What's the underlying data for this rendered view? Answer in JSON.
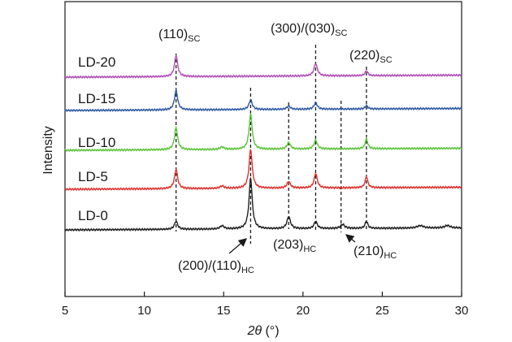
{
  "chart_data": {
    "type": "line",
    "xlabel_italic": "2θ",
    "xlabel_unit": " (°)",
    "ylabel": "Intensity",
    "xlim": [
      5,
      30
    ],
    "xticks": [
      5,
      10,
      15,
      20,
      25,
      30
    ],
    "yticks_shown": false,
    "series": [
      {
        "name": "LD-0",
        "color": "#222222",
        "baseline": 0,
        "peaks": [
          {
            "x": 12.0,
            "h": 10,
            "w": 0.12
          },
          {
            "x": 14.9,
            "h": 4,
            "w": 0.15
          },
          {
            "x": 16.7,
            "h": 63,
            "w": 0.12
          },
          {
            "x": 19.1,
            "h": 15,
            "w": 0.13
          },
          {
            "x": 20.8,
            "h": 9,
            "w": 0.12
          },
          {
            "x": 22.5,
            "h": 5,
            "w": 0.15
          },
          {
            "x": 24.0,
            "h": 9,
            "w": 0.1
          },
          {
            "x": 27.4,
            "h": 3,
            "w": 0.25
          },
          {
            "x": 29.1,
            "h": 3,
            "w": 0.2
          }
        ]
      },
      {
        "name": "LD-5",
        "color": "#e0312e",
        "baseline": 50,
        "peaks": [
          {
            "x": 12.0,
            "h": 24,
            "w": 0.12
          },
          {
            "x": 14.9,
            "h": 3,
            "w": 0.15
          },
          {
            "x": 16.7,
            "h": 48,
            "w": 0.12
          },
          {
            "x": 19.1,
            "h": 8,
            "w": 0.13
          },
          {
            "x": 20.8,
            "h": 18,
            "w": 0.12
          },
          {
            "x": 24.0,
            "h": 14,
            "w": 0.1
          }
        ]
      },
      {
        "name": "LD-10",
        "color": "#5cc43c",
        "baseline": 98,
        "peaks": [
          {
            "x": 12.0,
            "h": 27,
            "w": 0.12
          },
          {
            "x": 14.9,
            "h": 3,
            "w": 0.15
          },
          {
            "x": 16.7,
            "h": 43,
            "w": 0.12
          },
          {
            "x": 19.1,
            "h": 8,
            "w": 0.13
          },
          {
            "x": 20.8,
            "h": 11,
            "w": 0.12
          },
          {
            "x": 24.0,
            "h": 12,
            "w": 0.1
          }
        ]
      },
      {
        "name": "LD-15",
        "color": "#2e5aa3",
        "baseline": 147,
        "peaks": [
          {
            "x": 12.0,
            "h": 24,
            "w": 0.12
          },
          {
            "x": 16.7,
            "h": 12,
            "w": 0.12
          },
          {
            "x": 19.1,
            "h": 4,
            "w": 0.13
          },
          {
            "x": 20.8,
            "h": 8,
            "w": 0.12
          },
          {
            "x": 24.0,
            "h": 4,
            "w": 0.1
          }
        ]
      },
      {
        "name": "LD-20",
        "color": "#b04fb5",
        "baseline": 188,
        "peaks": [
          {
            "x": 12.0,
            "h": 26,
            "w": 0.12
          },
          {
            "x": 20.8,
            "h": 15,
            "w": 0.13
          },
          {
            "x": 24.0,
            "h": 6,
            "w": 0.1
          }
        ]
      }
    ],
    "reference_lines_x": [
      12.0,
      16.7,
      19.1,
      20.8,
      22.4,
      24.0
    ],
    "annotations": [
      {
        "main": "(110)",
        "sub": "SC"
      },
      {
        "main": "(300)/(030)",
        "sub": "SC"
      },
      {
        "main": "(220)",
        "sub": "SC"
      },
      {
        "main": "(200)/(110)",
        "sub": "HC"
      },
      {
        "main": "(203)",
        "sub": "HC"
      },
      {
        "main": "(210)",
        "sub": "HC"
      }
    ]
  }
}
